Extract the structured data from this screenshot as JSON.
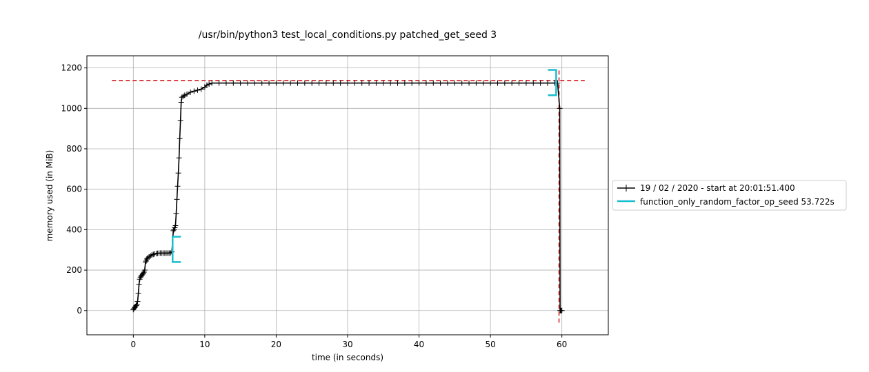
{
  "chart_data": {
    "type": "line",
    "title": "/usr/bin/python3 test_local_conditions.py patched_get_seed 3",
    "xlabel": "time (in seconds)",
    "ylabel": "memory used (in MiB)",
    "xlim": [
      -6.5,
      66.5
    ],
    "ylim": [
      -120,
      1260
    ],
    "xticks": [
      0,
      10,
      20,
      30,
      40,
      50,
      60
    ],
    "yticks": [
      0,
      200,
      400,
      600,
      800,
      1000,
      1200
    ],
    "grid": true,
    "legend_position": "center-right-outside",
    "colors": {
      "memory_line": "#000000",
      "bracket": "#17becf",
      "reference": "#d62728",
      "grid": "#b0b0b0"
    },
    "series": [
      {
        "name": "19 / 02 / 2020 - start at 20:01:51.400",
        "marker": "+",
        "x": [
          0.0,
          0.1,
          0.2,
          0.3,
          0.4,
          0.5,
          0.6,
          0.7,
          0.8,
          0.9,
          1.0,
          1.1,
          1.2,
          1.3,
          1.4,
          1.5,
          1.6,
          1.7,
          1.8,
          1.9,
          2.0,
          2.2,
          2.4,
          2.6,
          2.8,
          3.0,
          3.2,
          3.4,
          3.6,
          3.8,
          4.0,
          4.2,
          4.4,
          4.6,
          4.8,
          5.0,
          5.2,
          5.4,
          5.6,
          5.7,
          5.8,
          5.9,
          6.0,
          6.1,
          6.2,
          6.3,
          6.4,
          6.5,
          6.6,
          6.7,
          6.8,
          7.0,
          7.2,
          7.5,
          8.0,
          8.5,
          9.0,
          9.5,
          10.0,
          10.3,
          10.6,
          11.0,
          12.0,
          13.0,
          14.0,
          15.0,
          16.0,
          17.0,
          18.0,
          19.0,
          20.0,
          21.0,
          22.0,
          23.0,
          24.0,
          25.0,
          26.0,
          27.0,
          28.0,
          29.0,
          30.0,
          31.0,
          32.0,
          33.0,
          34.0,
          35.0,
          36.0,
          37.0,
          38.0,
          39.0,
          40.0,
          41.0,
          42.0,
          43.0,
          44.0,
          45.0,
          46.0,
          47.0,
          48.0,
          49.0,
          50.0,
          51.0,
          52.0,
          53.0,
          54.0,
          55.0,
          56.0,
          57.0,
          58.0,
          59.0,
          59.4,
          59.7,
          59.75,
          59.8,
          59.9,
          60.0
        ],
        "y": [
          5,
          10,
          15,
          20,
          25,
          30,
          45,
          85,
          130,
          155,
          165,
          170,
          175,
          180,
          185,
          190,
          200,
          240,
          245,
          255,
          260,
          265,
          270,
          275,
          278,
          280,
          282,
          283,
          284,
          284,
          284,
          284,
          284,
          284,
          284,
          284,
          285,
          290,
          395,
          400,
          410,
          420,
          480,
          550,
          615,
          680,
          755,
          850,
          940,
          1030,
          1055,
          1060,
          1065,
          1070,
          1080,
          1085,
          1090,
          1095,
          1105,
          1115,
          1120,
          1125,
          1125,
          1125,
          1125,
          1125,
          1125,
          1125,
          1125,
          1125,
          1125,
          1125,
          1125,
          1125,
          1125,
          1125,
          1125,
          1125,
          1125,
          1125,
          1125,
          1125,
          1125,
          1125,
          1125,
          1125,
          1125,
          1125,
          1125,
          1125,
          1125,
          1125,
          1125,
          1125,
          1125,
          1125,
          1125,
          1125,
          1125,
          1125,
          1125,
          1125,
          1125,
          1125,
          1125,
          1125,
          1125,
          1125,
          1125,
          1125,
          1125,
          1000,
          0,
          0,
          0,
          0
        ]
      }
    ],
    "brackets": [
      {
        "name": "function_only_random_factor_op_seed 53.722s",
        "x_start": 5.5,
        "x_end": 59.2,
        "start_range": [
          240,
          365
        ],
        "end_range": [
          1065,
          1190
        ]
      }
    ],
    "reference_lines": {
      "max_memory": 1138,
      "max_time": 59.6,
      "h_span": [
        -3.0,
        63.2
      ],
      "v_span": [
        -60,
        1190
      ]
    }
  }
}
